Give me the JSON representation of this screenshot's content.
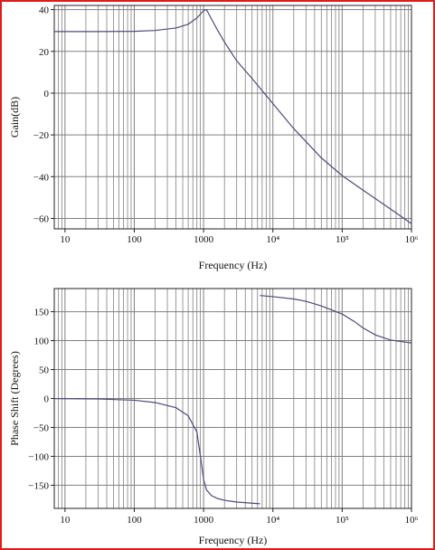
{
  "colors": {
    "frame": "#e01a1a",
    "curve": "#4a4c7a",
    "grid": "#808080",
    "axis": "#222222"
  },
  "chart_data": [
    {
      "type": "line",
      "title": "",
      "xlabel": "Frequency (Hz)",
      "ylabel": "Gain(dB)",
      "x_scale": "log",
      "xlim": [
        7,
        1000000
      ],
      "ylim": [
        -65,
        42
      ],
      "grid": true,
      "x_tick_labels": [
        "10",
        "100",
        "1000",
        "10⁴",
        "10⁵",
        "10⁶"
      ],
      "x_tick_values": [
        10,
        100,
        1000,
        10000,
        100000,
        1000000
      ],
      "y_ticks": [
        40,
        20,
        0,
        -20,
        -40,
        -60
      ],
      "series": [
        {
          "x": [
            7,
            10,
            30,
            100,
            200,
            400,
            600,
            800,
            1000,
            1100,
            1300,
            1600,
            2000,
            3000,
            5000,
            10000,
            20000,
            50000,
            100000,
            200000,
            500000,
            1000000
          ],
          "y": [
            29.5,
            29.5,
            29.5,
            29.6,
            30.0,
            31.2,
            33.0,
            36.0,
            39.5,
            40.0,
            35.5,
            30.0,
            24.5,
            15.5,
            7.0,
            -5.0,
            -17.0,
            -31.0,
            -39.5,
            -46.5,
            -55.5,
            -62.5
          ]
        }
      ]
    },
    {
      "type": "line",
      "title": "",
      "xlabel": "Frequency (Hz)",
      "ylabel": "Phase Shift (Degrees)",
      "x_scale": "log",
      "xlim": [
        7,
        1000000
      ],
      "ylim": [
        -190,
        190
      ],
      "grid": true,
      "x_tick_labels": [
        "10",
        "100",
        "1000",
        "10⁴",
        "10⁵",
        "10⁶"
      ],
      "x_tick_values": [
        10,
        100,
        1000,
        10000,
        100000,
        1000000
      ],
      "y_ticks": [
        150,
        100,
        50,
        0,
        -50,
        -100,
        -150
      ],
      "series": [
        {
          "x": [
            7,
            10,
            30,
            100,
            200,
            400,
            600,
            800,
            900,
            1000,
            1100,
            1300,
            1600,
            2000,
            3000,
            5000,
            6500
          ],
          "y": [
            -0.3,
            -0.4,
            -0.8,
            -3,
            -7,
            -16,
            -30,
            -58,
            -100,
            -140,
            -158,
            -168,
            -173,
            -176,
            -179,
            -181,
            -182
          ]
        },
        {
          "x": [
            6500,
            10000,
            20000,
            30000,
            50000,
            100000,
            150000,
            200000,
            300000,
            500000,
            1000000
          ],
          "y": [
            178,
            176,
            172,
            168,
            160,
            146,
            133,
            122,
            110,
            101,
            96
          ]
        }
      ]
    }
  ]
}
